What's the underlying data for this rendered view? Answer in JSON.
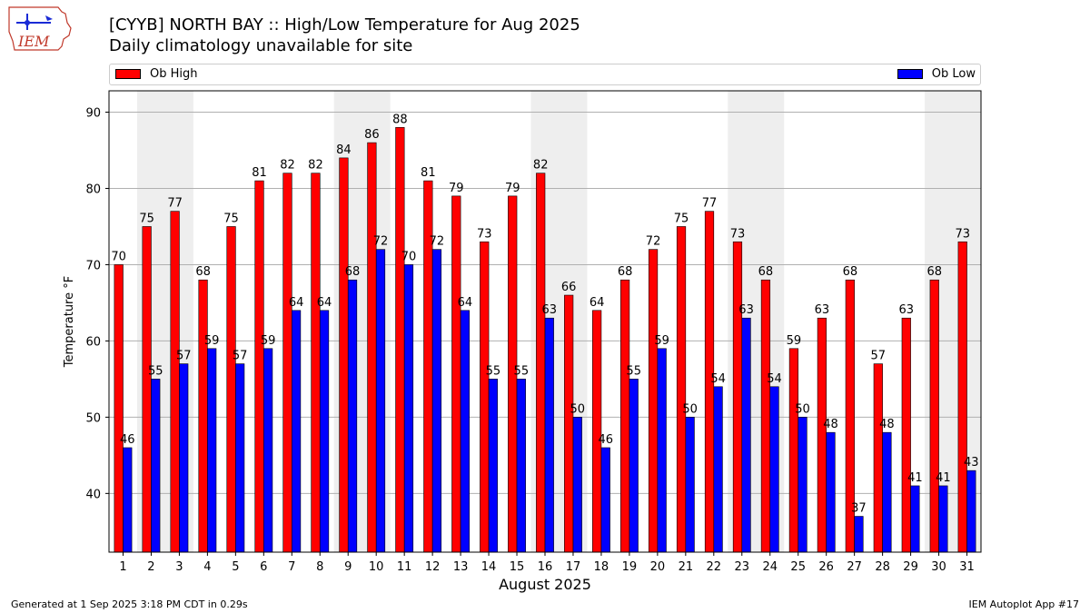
{
  "header": {
    "title": "[CYYB] NORTH BAY :: High/Low Temperature for Aug 2025",
    "subtitle": "Daily climatology unavailable for site"
  },
  "logo": {
    "text": "IEM",
    "icon": "iem-iowa-logo-icon"
  },
  "footer": {
    "left": "Generated at 1 Sep 2025 3:18 PM CDT in 0.29s",
    "right": "IEM Autoplot App #17"
  },
  "colors": {
    "high": "#ff0000",
    "low": "#0000ff",
    "weekend_band": "#eeeeee",
    "grid": "#b0b0b0"
  },
  "chart_data": {
    "type": "bar",
    "xlabel": "August 2025",
    "ylabel": "Temperature °F",
    "ylim": [
      32.3,
      92.8
    ],
    "yticks": [
      40,
      50,
      60,
      70,
      80,
      90
    ],
    "grid": "horizontal",
    "legend_placement": "top",
    "shaded_day_pairs": [
      [
        2,
        3
      ],
      [
        9,
        10
      ],
      [
        16,
        17
      ],
      [
        23,
        24
      ],
      [
        30,
        31
      ]
    ],
    "categories": [
      "1",
      "2",
      "3",
      "4",
      "5",
      "6",
      "7",
      "8",
      "9",
      "10",
      "11",
      "12",
      "13",
      "14",
      "15",
      "16",
      "17",
      "18",
      "19",
      "20",
      "21",
      "22",
      "23",
      "24",
      "25",
      "26",
      "27",
      "28",
      "29",
      "30",
      "31"
    ],
    "series": [
      {
        "name": "Ob High",
        "color": "#ff0000",
        "values": [
          70,
          75,
          77,
          68,
          75,
          81,
          82,
          82,
          84,
          86,
          88,
          81,
          79,
          73,
          79,
          82,
          66,
          64,
          68,
          72,
          75,
          77,
          73,
          68,
          59,
          63,
          68,
          57,
          63,
          68,
          73
        ]
      },
      {
        "name": "Ob Low",
        "color": "#0000ff",
        "values": [
          46,
          55,
          57,
          59,
          57,
          59,
          64,
          64,
          68,
          72,
          70,
          72,
          64,
          55,
          55,
          63,
          50,
          46,
          55,
          59,
          50,
          54,
          63,
          54,
          50,
          48,
          37,
          48,
          41,
          41,
          43
        ]
      }
    ]
  }
}
